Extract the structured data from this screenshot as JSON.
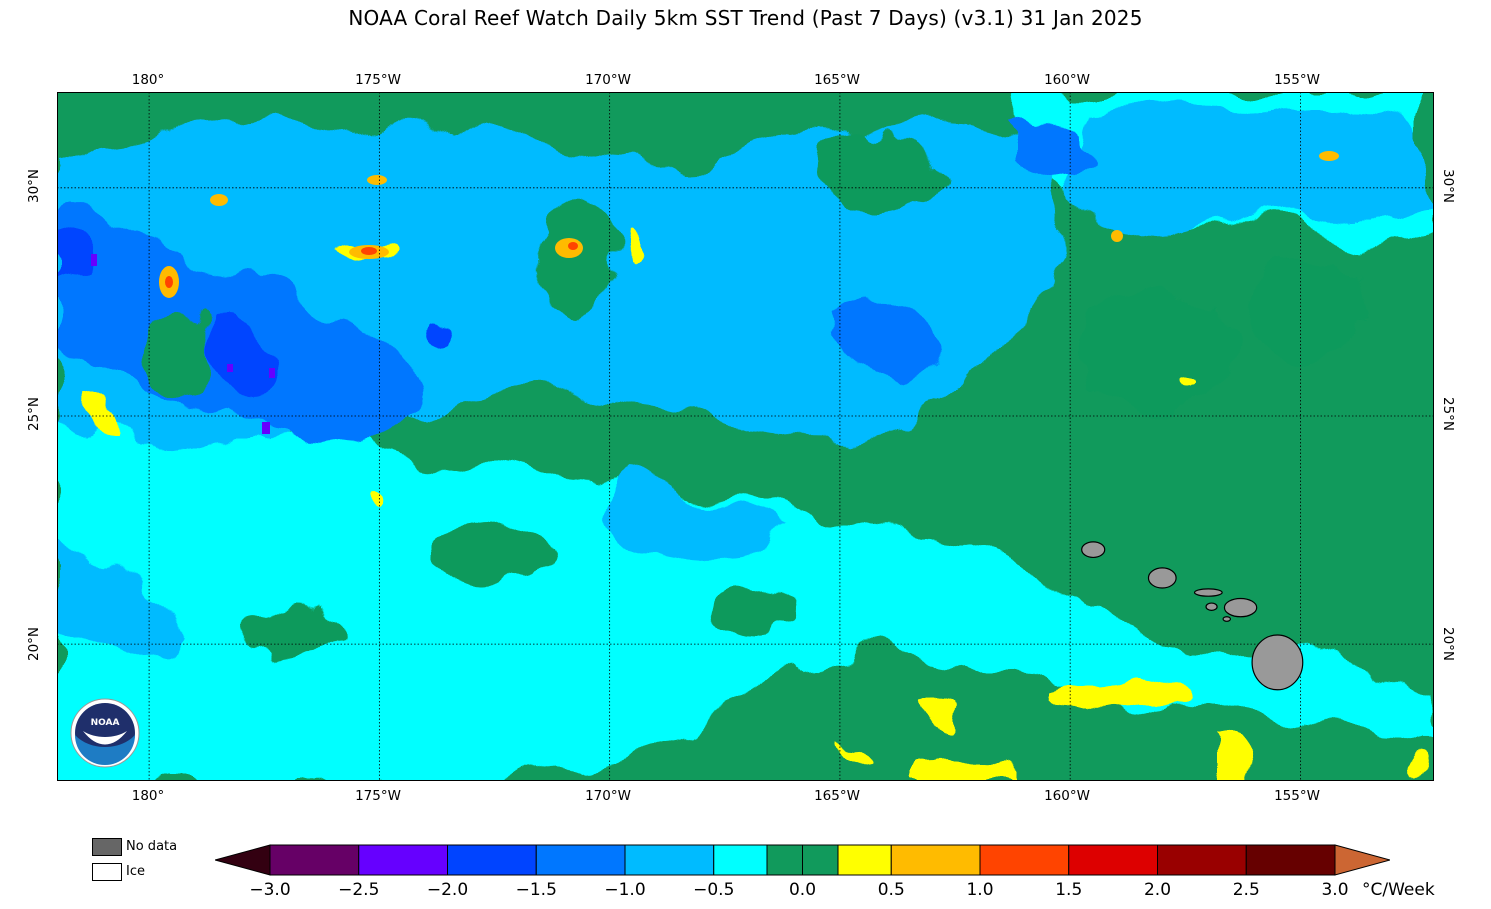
{
  "title": "NOAA Coral Reef Watch Daily 5km SST Trend (Past 7 Days)  (v3.1)   31 Jan 2025",
  "map": {
    "lon_range": [
      -182,
      -152.1
    ],
    "lat_range": [
      17.0,
      32.1
    ],
    "lon_ticks": [
      {
        "value": -180,
        "label": "180°"
      },
      {
        "value": -175,
        "label": "175°W"
      },
      {
        "value": -170,
        "label": "170°W"
      },
      {
        "value": -165,
        "label": "165°W"
      },
      {
        "value": -160,
        "label": "160°W"
      },
      {
        "value": -155,
        "label": "155°W"
      }
    ],
    "lat_ticks": [
      {
        "value": 30,
        "label": "30°N"
      },
      {
        "value": 25,
        "label": "25°N"
      },
      {
        "value": 20,
        "label": "20°N"
      }
    ],
    "gridlines": true,
    "background_color": "#119a5c",
    "land_color": "#999999",
    "islands": [
      {
        "name": "Kauai",
        "lon": -159.5,
        "lat": 22.07,
        "rx": 0.25,
        "ry": 0.17
      },
      {
        "name": "Oahu",
        "lon": -158.0,
        "lat": 21.45,
        "rx": 0.3,
        "ry": 0.22
      },
      {
        "name": "Molokai",
        "lon": -157.0,
        "lat": 21.13,
        "rx": 0.3,
        "ry": 0.08
      },
      {
        "name": "Lanai",
        "lon": -156.93,
        "lat": 20.82,
        "rx": 0.12,
        "ry": 0.08
      },
      {
        "name": "Maui",
        "lon": -156.3,
        "lat": 20.8,
        "rx": 0.35,
        "ry": 0.2
      },
      {
        "name": "Kahoolawe",
        "lon": -156.6,
        "lat": 20.55,
        "rx": 0.08,
        "ry": 0.05
      },
      {
        "name": "Hawaii",
        "lon": -155.5,
        "lat": 19.6,
        "rx": 0.55,
        "ry": 0.6
      }
    ]
  },
  "legend": {
    "no_data_label": "No data",
    "ice_label": "Ice",
    "no_data_color": "#666666",
    "ice_color": "#ffffff",
    "units": "°C/Week",
    "ticks": [
      "−3.0",
      "−2.5",
      "−2.0",
      "−1.5",
      "−1.0",
      "−0.5",
      "0.0",
      "0.5",
      "1.0",
      "1.5",
      "2.0",
      "2.5",
      "3.0"
    ],
    "colors": [
      {
        "from": -3.0,
        "to": -2.5,
        "color": "#660066"
      },
      {
        "from": -2.5,
        "to": -2.0,
        "color": "#6600ff"
      },
      {
        "from": -2.0,
        "to": -1.5,
        "color": "#0044ff"
      },
      {
        "from": -1.5,
        "to": -1.0,
        "color": "#0077ff"
      },
      {
        "from": -1.0,
        "to": -0.5,
        "color": "#00bbff"
      },
      {
        "from": -0.5,
        "to": -0.2,
        "color": "#00ffff"
      },
      {
        "from": -0.2,
        "to": 0.0,
        "color": "#119a5c"
      },
      {
        "from": 0.0,
        "to": 0.2,
        "color": "#119a5c"
      },
      {
        "from": 0.2,
        "to": 0.5,
        "color": "#ffff00"
      },
      {
        "from": 0.5,
        "to": 1.0,
        "color": "#ffbb00"
      },
      {
        "from": 1.0,
        "to": 1.5,
        "color": "#ff4400"
      },
      {
        "from": 1.5,
        "to": 2.0,
        "color": "#dd0000"
      },
      {
        "from": 2.0,
        "to": 2.5,
        "color": "#990000"
      },
      {
        "from": 2.5,
        "to": 3.0,
        "color": "#660000"
      }
    ],
    "under_color": "#330011",
    "over_color": "#cc6633"
  },
  "logo": {
    "text": "NOAA",
    "ring_text": "U.S. DEPARTMENT OF COMMERCE"
  }
}
